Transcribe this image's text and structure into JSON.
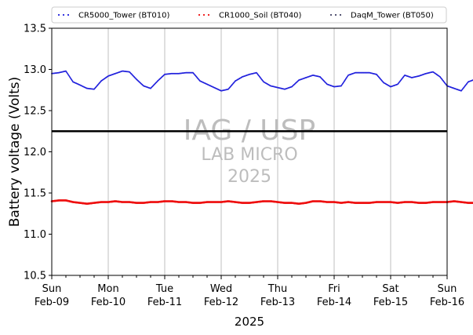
{
  "chart_data": {
    "type": "scatter",
    "x_start": "2025-02-09",
    "x_end": "2025-02-16",
    "xlabel": "2025",
    "ylabel": "Battery voltage (Volts)",
    "ylim": [
      10.5,
      13.5
    ],
    "yticks": [
      "10.5",
      "11.0",
      "11.5",
      "12.0",
      "12.5",
      "13.0",
      "13.5"
    ],
    "xticks": [
      {
        "day": "Sun",
        "date": "Feb-09"
      },
      {
        "day": "Mon",
        "date": "Feb-10"
      },
      {
        "day": "Tue",
        "date": "Feb-11"
      },
      {
        "day": "Wed",
        "date": "Feb-12"
      },
      {
        "day": "Thu",
        "date": "Feb-13"
      },
      {
        "day": "Fri",
        "date": "Feb-14"
      },
      {
        "day": "Sat",
        "date": "Feb-15"
      },
      {
        "day": "Sun",
        "date": "Feb-16"
      }
    ],
    "grid": "vertical",
    "legend_position": "top",
    "threshold_line": 12.25,
    "watermark": {
      "line1": "IAG / USP",
      "line2": "LAB MICRO",
      "line3": "2025"
    },
    "series": [
      {
        "name": "CR5000_Tower (BT010)",
        "color": "#2222dd",
        "points": [
          [
            "2025-02-09T00:00",
            12.95
          ],
          [
            "2025-02-09T03:00",
            12.96
          ],
          [
            "2025-02-09T06:00",
            12.98
          ],
          [
            "2025-02-09T09:00",
            12.85
          ],
          [
            "2025-02-09T12:00",
            12.81
          ],
          [
            "2025-02-09T15:00",
            12.77
          ],
          [
            "2025-02-09T18:00",
            12.76
          ],
          [
            "2025-02-09T21:00",
            12.86
          ],
          [
            "2025-02-10T00:00",
            12.92
          ],
          [
            "2025-02-10T03:00",
            12.95
          ],
          [
            "2025-02-10T06:00",
            12.98
          ],
          [
            "2025-02-10T09:00",
            12.97
          ],
          [
            "2025-02-10T12:00",
            12.88
          ],
          [
            "2025-02-10T15:00",
            12.8
          ],
          [
            "2025-02-10T18:00",
            12.77
          ],
          [
            "2025-02-10T21:00",
            12.86
          ],
          [
            "2025-02-11T00:00",
            12.94
          ],
          [
            "2025-02-11T03:00",
            12.95
          ],
          [
            "2025-02-11T06:00",
            12.95
          ],
          [
            "2025-02-11T09:00",
            12.96
          ],
          [
            "2025-02-11T12:00",
            12.96
          ],
          [
            "2025-02-11T15:00",
            12.86
          ],
          [
            "2025-02-11T18:00",
            12.82
          ],
          [
            "2025-02-11T21:00",
            12.78
          ],
          [
            "2025-02-12T00:00",
            12.74
          ],
          [
            "2025-02-12T03:00",
            12.76
          ],
          [
            "2025-02-12T06:00",
            12.86
          ],
          [
            "2025-02-12T09:00",
            12.91
          ],
          [
            "2025-02-12T12:00",
            12.94
          ],
          [
            "2025-02-12T15:00",
            12.96
          ],
          [
            "2025-02-12T18:00",
            12.85
          ],
          [
            "2025-02-12T21:00",
            12.8
          ],
          [
            "2025-02-13T00:00",
            12.78
          ],
          [
            "2025-02-13T03:00",
            12.76
          ],
          [
            "2025-02-13T06:00",
            12.79
          ],
          [
            "2025-02-13T09:00",
            12.87
          ],
          [
            "2025-02-13T12:00",
            12.9
          ],
          [
            "2025-02-13T15:00",
            12.93
          ],
          [
            "2025-02-13T18:00",
            12.91
          ],
          [
            "2025-02-13T21:00",
            12.82
          ],
          [
            "2025-02-14T00:00",
            12.79
          ],
          [
            "2025-02-14T03:00",
            12.8
          ],
          [
            "2025-02-14T06:00",
            12.93
          ],
          [
            "2025-02-14T09:00",
            12.96
          ],
          [
            "2025-02-14T12:00",
            12.96
          ],
          [
            "2025-02-14T15:00",
            12.96
          ],
          [
            "2025-02-14T18:00",
            12.94
          ],
          [
            "2025-02-14T21:00",
            12.84
          ],
          [
            "2025-02-15T00:00",
            12.79
          ],
          [
            "2025-02-15T03:00",
            12.82
          ],
          [
            "2025-02-15T06:00",
            12.93
          ],
          [
            "2025-02-15T09:00",
            12.9
          ],
          [
            "2025-02-15T12:00",
            12.92
          ],
          [
            "2025-02-15T15:00",
            12.95
          ],
          [
            "2025-02-15T18:00",
            12.97
          ],
          [
            "2025-02-15T21:00",
            12.91
          ],
          [
            "2025-02-16T00:00",
            12.8
          ],
          [
            "2025-02-16T03:00",
            12.77
          ],
          [
            "2025-02-16T06:00",
            12.74
          ],
          [
            "2025-02-16T09:00",
            12.85
          ],
          [
            "2025-02-16T12:00",
            12.88
          ],
          [
            "2025-02-16T15:00",
            12.89
          ]
        ]
      },
      {
        "name": "CR1000_Soil (BT040)",
        "color": "#ee1111",
        "points": [
          [
            "2025-02-09T00:00",
            11.4
          ],
          [
            "2025-02-09T03:00",
            11.41
          ],
          [
            "2025-02-09T06:00",
            11.41
          ],
          [
            "2025-02-09T09:00",
            11.39
          ],
          [
            "2025-02-09T12:00",
            11.38
          ],
          [
            "2025-02-09T15:00",
            11.37
          ],
          [
            "2025-02-09T18:00",
            11.38
          ],
          [
            "2025-02-09T21:00",
            11.39
          ],
          [
            "2025-02-10T00:00",
            11.39
          ],
          [
            "2025-02-10T03:00",
            11.4
          ],
          [
            "2025-02-10T06:00",
            11.39
          ],
          [
            "2025-02-10T09:00",
            11.39
          ],
          [
            "2025-02-10T12:00",
            11.38
          ],
          [
            "2025-02-10T15:00",
            11.38
          ],
          [
            "2025-02-10T18:00",
            11.39
          ],
          [
            "2025-02-10T21:00",
            11.39
          ],
          [
            "2025-02-11T00:00",
            11.4
          ],
          [
            "2025-02-11T03:00",
            11.4
          ],
          [
            "2025-02-11T06:00",
            11.39
          ],
          [
            "2025-02-11T09:00",
            11.39
          ],
          [
            "2025-02-11T12:00",
            11.38
          ],
          [
            "2025-02-11T15:00",
            11.38
          ],
          [
            "2025-02-11T18:00",
            11.39
          ],
          [
            "2025-02-11T21:00",
            11.39
          ],
          [
            "2025-02-12T00:00",
            11.39
          ],
          [
            "2025-02-12T03:00",
            11.4
          ],
          [
            "2025-02-12T06:00",
            11.39
          ],
          [
            "2025-02-12T09:00",
            11.38
          ],
          [
            "2025-02-12T12:00",
            11.38
          ],
          [
            "2025-02-12T15:00",
            11.39
          ],
          [
            "2025-02-12T18:00",
            11.4
          ],
          [
            "2025-02-12T21:00",
            11.4
          ],
          [
            "2025-02-13T00:00",
            11.39
          ],
          [
            "2025-02-13T03:00",
            11.38
          ],
          [
            "2025-02-13T06:00",
            11.38
          ],
          [
            "2025-02-13T09:00",
            11.37
          ],
          [
            "2025-02-13T12:00",
            11.38
          ],
          [
            "2025-02-13T15:00",
            11.4
          ],
          [
            "2025-02-13T18:00",
            11.4
          ],
          [
            "2025-02-13T21:00",
            11.39
          ],
          [
            "2025-02-14T00:00",
            11.39
          ],
          [
            "2025-02-14T03:00",
            11.38
          ],
          [
            "2025-02-14T06:00",
            11.39
          ],
          [
            "2025-02-14T09:00",
            11.38
          ],
          [
            "2025-02-14T12:00",
            11.38
          ],
          [
            "2025-02-14T15:00",
            11.38
          ],
          [
            "2025-02-14T18:00",
            11.39
          ],
          [
            "2025-02-14T21:00",
            11.39
          ],
          [
            "2025-02-15T00:00",
            11.39
          ],
          [
            "2025-02-15T03:00",
            11.38
          ],
          [
            "2025-02-15T06:00",
            11.39
          ],
          [
            "2025-02-15T09:00",
            11.39
          ],
          [
            "2025-02-15T12:00",
            11.38
          ],
          [
            "2025-02-15T15:00",
            11.38
          ],
          [
            "2025-02-15T18:00",
            11.39
          ],
          [
            "2025-02-15T21:00",
            11.39
          ],
          [
            "2025-02-16T00:00",
            11.39
          ],
          [
            "2025-02-16T03:00",
            11.4
          ],
          [
            "2025-02-16T06:00",
            11.39
          ],
          [
            "2025-02-16T09:00",
            11.38
          ],
          [
            "2025-02-16T12:00",
            11.38
          ],
          [
            "2025-02-16T15:00",
            11.39
          ]
        ]
      },
      {
        "name": "DaqM_Tower (BT050)",
        "color": "#444466",
        "points": []
      }
    ]
  }
}
